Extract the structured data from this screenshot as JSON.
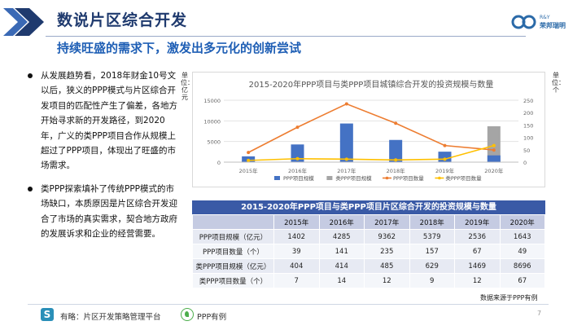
{
  "header": {
    "title": "数说片区综合开发",
    "subtitle": "持续旺盛的需求下，激发出多元化的创新尝试",
    "logo_top": "R&Y",
    "logo_bottom": "荣邦瑞明"
  },
  "bullets": [
    "从发展趋势看，2018年财金10号文以后，狭义的PPP模式与片区综合开发项目的匹配性产生了偏差，各地方开始寻求新的开发路径，到2020年，广义的类PPP项目合作从规模上超过了PPP项目，体现出了旺盛的市场需求。",
    "类PPP探索填补了传统PPP模式的市场缺口，本质原因是片区综合开发迎合了市场的真实需求，契合地方政府的发展诉求和企业的经营需要。"
  ],
  "axis_units": {
    "left": "单位：亿元",
    "right": "单位：个"
  },
  "chart_data": {
    "type": "bar",
    "title": "2015-2020年PPP项目与类PPP项目城镇综合开发的投资规模与数量",
    "categories": [
      "2015年",
      "2016年",
      "2017年",
      "2018年",
      "2019年",
      "2020年"
    ],
    "y_left": {
      "ylim": [
        0,
        15000
      ],
      "ticks": [
        0,
        5000,
        10000,
        15000
      ]
    },
    "y_right": {
      "ylim": [
        0,
        250
      ],
      "ticks": [
        0,
        50,
        100,
        150,
        200,
        250
      ]
    },
    "series": [
      {
        "name": "PPP项目规模",
        "kind": "bar",
        "axis": "left",
        "color": "#4472c4",
        "values": [
          1402,
          4285,
          9362,
          5379,
          2536,
          1643
        ]
      },
      {
        "name": "类PPP项目规模",
        "kind": "bar",
        "axis": "left",
        "color": "#a5a5a5",
        "values": [
          404,
          414,
          485,
          629,
          1469,
          8696
        ]
      },
      {
        "name": "PPP项目数量",
        "kind": "line",
        "axis": "right",
        "color": "#ed7d31",
        "values": [
          39,
          141,
          235,
          157,
          67,
          49
        ]
      },
      {
        "name": "类PPP项目数量",
        "kind": "line",
        "axis": "right",
        "color": "#ffc000",
        "values": [
          7,
          14,
          12,
          9,
          12,
          67
        ]
      }
    ],
    "legend_position": "bottom"
  },
  "table": {
    "caption": "2015-2020年PPP项目与类PPP项目片区综合开发的投资规模与数量",
    "headers": [
      "",
      "2015年",
      "2016年",
      "2017年",
      "2018年",
      "2019年",
      "2020年"
    ],
    "rows": [
      [
        "PPP项目规模（亿元）",
        "1402",
        "4285",
        "9362",
        "5379",
        "2536",
        "1643"
      ],
      [
        "PPP项目数量（个）",
        "39",
        "141",
        "235",
        "157",
        "67",
        "49"
      ],
      [
        "类PPP项目规模（亿元）",
        "404",
        "414",
        "485",
        "629",
        "1469",
        "8696"
      ],
      [
        "类PPP项目数量（个）",
        "7",
        "14",
        "12",
        "9",
        "12",
        "67"
      ]
    ]
  },
  "source_note": "数据来源于PPP有例",
  "footer": {
    "logo_glyph": "S",
    "platform": "有略：片区开发策略管理平台",
    "brand": "PPP有例"
  },
  "page_number": "7"
}
